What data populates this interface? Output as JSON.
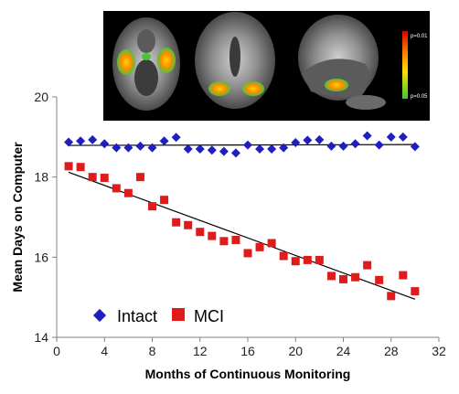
{
  "chart_data": {
    "type": "scatter",
    "xlabel": "Months of Continuous Monitoring",
    "ylabel": "Mean Days on Computer",
    "xlim": [
      0,
      32
    ],
    "ylim": [
      14,
      20
    ],
    "xticks": [
      "0",
      "4",
      "8",
      "12",
      "16",
      "20",
      "24",
      "28",
      "32"
    ],
    "yticks": [
      "14",
      "16",
      "18",
      "20"
    ],
    "grid": false,
    "legend_position": "bottom-left",
    "series": [
      {
        "name": "Intact",
        "marker": "diamond",
        "color": "#1f1fbf",
        "x": [
          1,
          2,
          3,
          4,
          5,
          6,
          7,
          8,
          9,
          10,
          11,
          12,
          13,
          14,
          15,
          16,
          17,
          18,
          19,
          20,
          21,
          22,
          23,
          24,
          25,
          26,
          27,
          28,
          29,
          30
        ],
        "y": [
          18.87,
          18.9,
          18.93,
          18.83,
          18.73,
          18.73,
          18.77,
          18.73,
          18.9,
          18.99,
          18.7,
          18.7,
          18.67,
          18.64,
          18.6,
          18.8,
          18.7,
          18.7,
          18.73,
          18.86,
          18.92,
          18.93,
          18.77,
          18.77,
          18.83,
          19.03,
          18.8,
          19.0,
          19.0,
          18.76
        ],
        "trend": {
          "x": [
            1,
            30
          ],
          "y": [
            18.79,
            18.81
          ]
        }
      },
      {
        "name": "MCI",
        "marker": "square",
        "color": "#e01b1b",
        "x": [
          1,
          2,
          3,
          4,
          5,
          6,
          7,
          8,
          9,
          10,
          11,
          12,
          13,
          14,
          15,
          16,
          17,
          18,
          19,
          20,
          21,
          22,
          23,
          24,
          25,
          26,
          27,
          28,
          29,
          30
        ],
        "y": [
          18.27,
          18.25,
          18.0,
          17.98,
          17.72,
          17.6,
          18.0,
          17.27,
          17.43,
          16.87,
          16.8,
          16.63,
          16.53,
          16.4,
          16.43,
          16.1,
          16.25,
          16.35,
          16.03,
          15.9,
          15.93,
          15.93,
          15.53,
          15.45,
          15.5,
          15.8,
          15.43,
          15.03,
          15.55,
          15.15
        ],
        "trend": {
          "x": [
            1,
            30
          ],
          "y": [
            18.12,
            14.95
          ]
        }
      }
    ],
    "inset": {
      "type": "image",
      "content": "brain MRI scans with activation map",
      "colorbar_labels": [
        "p=0.01",
        "p=0.05"
      ],
      "colorbar_colors": [
        "#d40000",
        "#ff8c00",
        "#ffe000",
        "#37c837"
      ]
    }
  }
}
